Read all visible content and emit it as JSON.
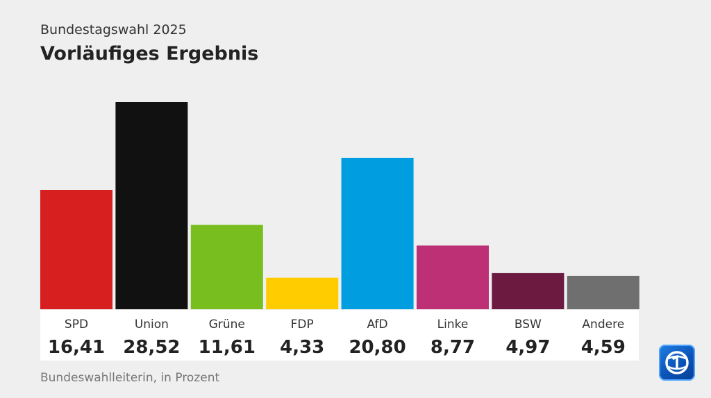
{
  "header": {
    "supertitle": "Bundestagswahl 2025",
    "title": "Vorläufiges Ergebnis"
  },
  "footer": {
    "source": "Bundeswahlleiterin, in Prozent"
  },
  "logo": {
    "icon": "tagesschau-logo-icon"
  },
  "chart_data": {
    "type": "bar",
    "title": "Vorläufiges Ergebnis",
    "xlabel": "",
    "ylabel": "",
    "ylim": [
      0,
      28.52
    ],
    "grid": false,
    "categories": [
      "SPD",
      "Union",
      "Grüne",
      "FDP",
      "AfD",
      "Linke",
      "BSW",
      "Andere"
    ],
    "values": [
      16.41,
      28.52,
      11.61,
      4.33,
      20.8,
      8.77,
      4.97,
      4.59
    ],
    "value_labels": [
      "16,41",
      "28,52",
      "11,61",
      "4,33",
      "20,80",
      "8,77",
      "4,97",
      "4,59"
    ],
    "colors": [
      "#d71f1f",
      "#111111",
      "#78be1e",
      "#ffcc00",
      "#009ee0",
      "#be3075",
      "#6d1a41",
      "#6f6f6f"
    ]
  }
}
